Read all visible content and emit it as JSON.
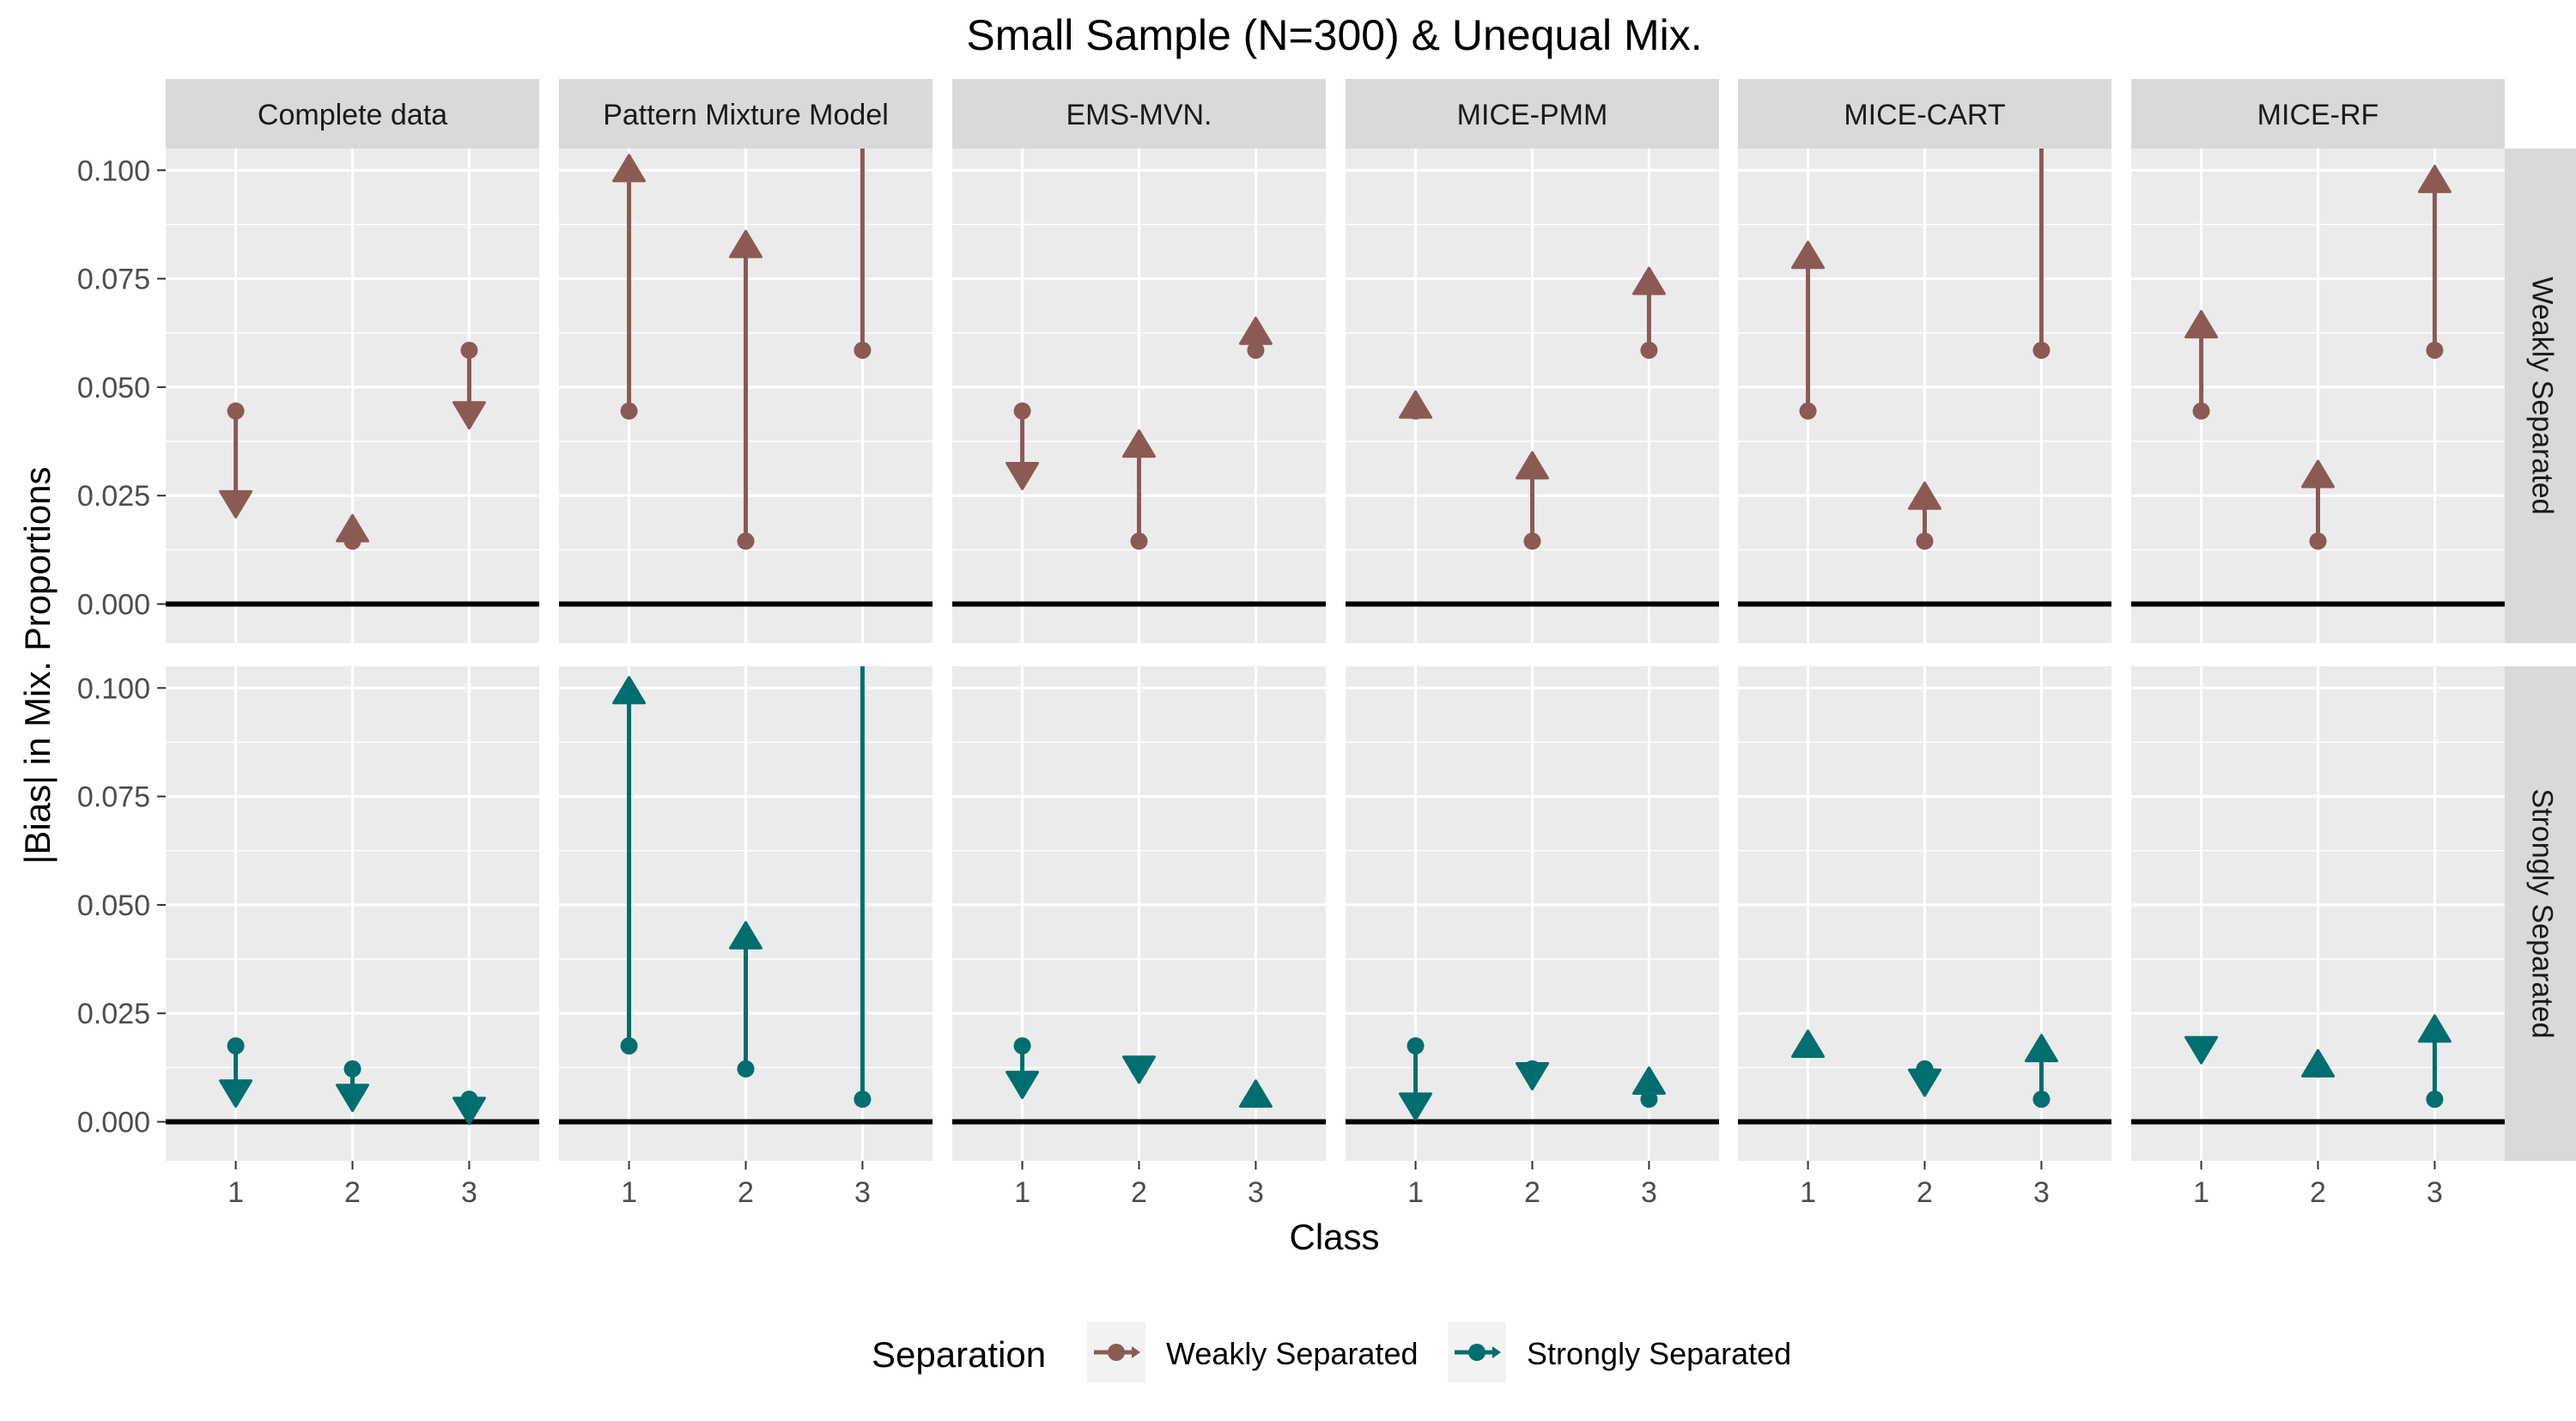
{
  "chart_data": {
    "type": "faceted-arrow",
    "title": "Small Sample (N=300) & Unequal Mix.",
    "xlabel": "Class",
    "ylabel": "|Bias| in Mix. Proportions",
    "ylim": [
      -0.009,
      0.105
    ],
    "yticks": [
      "0.000",
      "0.025",
      "0.050",
      "0.075",
      "0.100"
    ],
    "categories": [
      "1",
      "2",
      "3"
    ],
    "columns": [
      "Complete data",
      "Pattern Mixture Model",
      "EMS-MVN.",
      "MICE-PMM",
      "MICE-CART",
      "MICE-RF"
    ],
    "rows": [
      "Weakly Separated",
      "Strongly Separated"
    ],
    "grid": true,
    "legend": {
      "title": "Separation",
      "position": "bottom",
      "entries": [
        "Weakly Separated",
        "Strongly Separated"
      ]
    },
    "colors": {
      "Weakly Separated": "#8B5A55",
      "Strongly Separated": "#006D6F"
    },
    "series": [
      {
        "name": "Weakly Separated",
        "baseline": [
          0.0445,
          0.0145,
          0.0585
        ],
        "panels": [
          {
            "method": "Complete data",
            "values": [
              0.023,
              0.0175,
              0.0435
            ]
          },
          {
            "method": "Pattern Mixture Model",
            "values": [
              0.1005,
              0.083,
              0.11
            ]
          },
          {
            "method": "EMS-MVN.",
            "values": [
              0.0295,
              0.037,
              0.063
            ]
          },
          {
            "method": "MICE-PMM",
            "values": [
              0.046,
              0.032,
              0.0745
            ]
          },
          {
            "method": "MICE-CART",
            "values": [
              0.0805,
              0.025,
              0.11
            ]
          },
          {
            "method": "MICE-RF",
            "values": [
              0.0645,
              0.03,
              0.098
            ]
          }
        ]
      },
      {
        "name": "Strongly Separated",
        "baseline": [
          0.0175,
          0.0122,
          0.0052
        ],
        "panels": [
          {
            "method": "Complete data",
            "values": [
              0.0065,
              0.0055,
              0.0025
            ]
          },
          {
            "method": "Pattern Mixture Model",
            "values": [
              0.0995,
              0.043,
              0.11
            ]
          },
          {
            "method": "EMS-MVN.",
            "values": [
              0.0085,
              0.012,
              0.0065
            ]
          },
          {
            "method": "MICE-PMM",
            "values": [
              0.0035,
              0.0105,
              0.0095
            ]
          },
          {
            "method": "MICE-CART",
            "values": [
              0.018,
              0.009,
              0.017
            ]
          },
          {
            "method": "MICE-RF",
            "values": [
              0.0165,
              0.0135,
              0.0215
            ]
          }
        ]
      }
    ]
  }
}
